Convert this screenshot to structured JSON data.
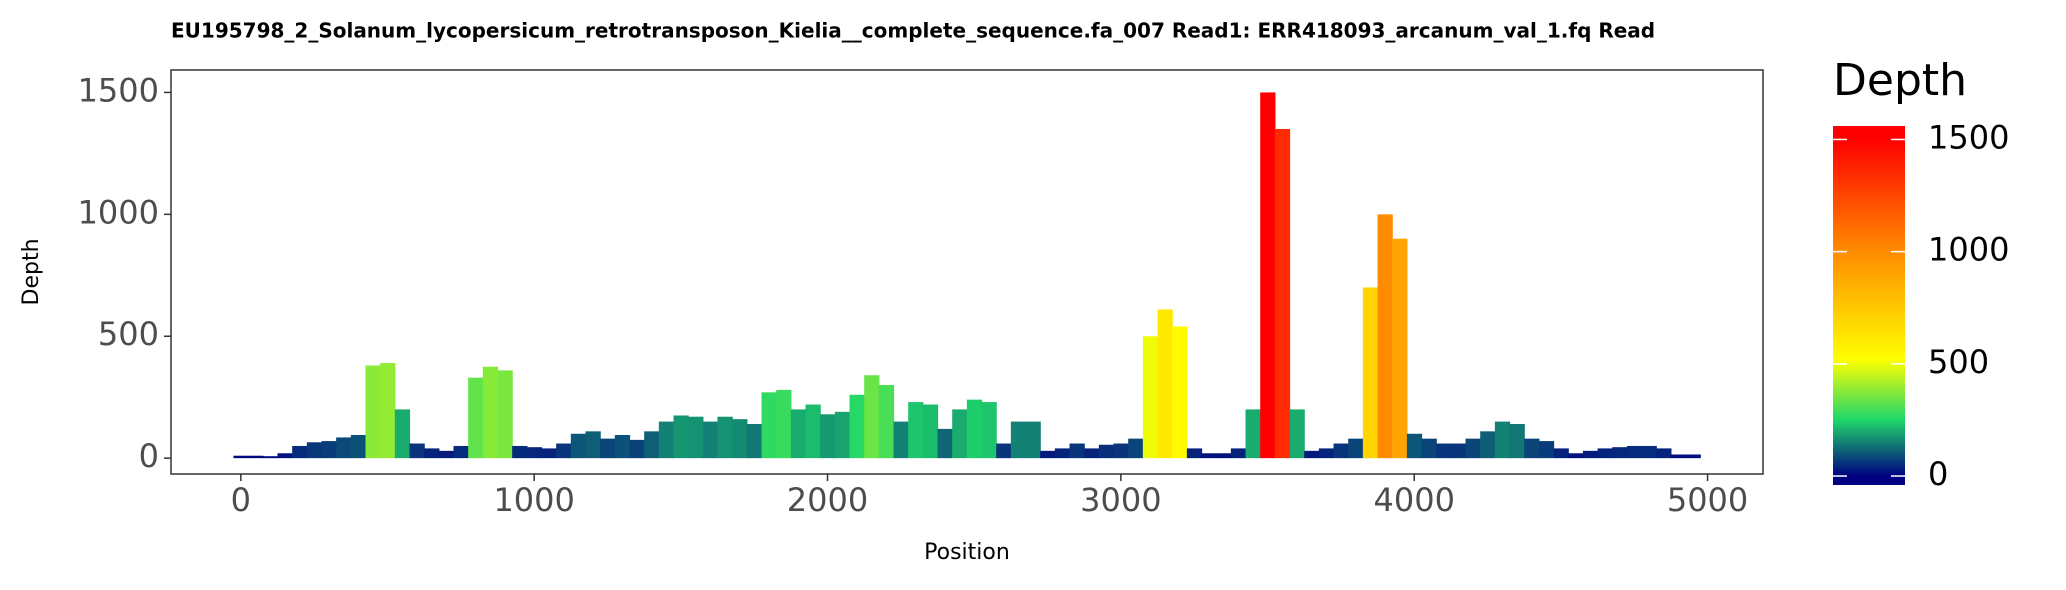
{
  "chart_data": {
    "type": "area",
    "title": "EU195798_2_Solanum_lycopersicum_retrotransposon_Kielia__complete_sequence.fa_007   Read1: ERR418093_arcanum_val_1.fq   Read",
    "x_label": "Position",
    "y_label": "Depth",
    "x": [
      0,
      50,
      100,
      150,
      200,
      250,
      300,
      350,
      400,
      450,
      500,
      550,
      600,
      650,
      700,
      750,
      800,
      850,
      900,
      950,
      1000,
      1050,
      1100,
      1150,
      1200,
      1250,
      1300,
      1350,
      1400,
      1450,
      1500,
      1550,
      1600,
      1650,
      1700,
      1750,
      1800,
      1850,
      1900,
      1950,
      2000,
      2050,
      2100,
      2150,
      2200,
      2250,
      2300,
      2350,
      2400,
      2450,
      2500,
      2550,
      2600,
      2650,
      2700,
      2750,
      2800,
      2850,
      2900,
      2950,
      3000,
      3050,
      3100,
      3150,
      3200,
      3250,
      3300,
      3350,
      3400,
      3450,
      3500,
      3550,
      3600,
      3650,
      3700,
      3750,
      3800,
      3850,
      3900,
      3950,
      4000,
      4050,
      4100,
      4150,
      4200,
      4250,
      4300,
      4350,
      4400,
      4450,
      4500,
      4550,
      4600,
      4650,
      4700,
      4750,
      4800,
      4850,
      4900,
      4950
    ],
    "values": [
      10,
      10,
      8,
      20,
      50,
      65,
      70,
      85,
      95,
      380,
      390,
      200,
      60,
      40,
      30,
      50,
      330,
      375,
      360,
      50,
      45,
      40,
      60,
      100,
      110,
      80,
      95,
      75,
      110,
      150,
      175,
      170,
      150,
      170,
      160,
      140,
      270,
      280,
      200,
      220,
      180,
      190,
      260,
      340,
      300,
      150,
      230,
      220,
      120,
      200,
      240,
      230,
      60,
      150,
      150,
      30,
      40,
      60,
      40,
      55,
      60,
      80,
      500,
      610,
      540,
      40,
      20,
      20,
      40,
      200,
      1500,
      1350,
      200,
      30,
      40,
      60,
      80,
      700,
      1000,
      900,
      100,
      80,
      60,
      60,
      80,
      110,
      150,
      140,
      80,
      70,
      40,
      20,
      30,
      40,
      45,
      50,
      50,
      40,
      15,
      15
    ],
    "xlim": [
      -238,
      5189
    ],
    "ylim": [
      -65,
      1592
    ],
    "xticks": [
      0,
      1000,
      2000,
      3000,
      4000,
      5000
    ],
    "yticks": [
      0,
      500,
      1000,
      1500
    ],
    "legend_title": "Depth",
    "clim": [
      -40,
      1560
    ],
    "cticks": [
      0,
      500,
      1000,
      1500
    ],
    "colorscale": [
      [
        0,
        "#000080"
      ],
      [
        250,
        "#1fd76a"
      ],
      [
        520,
        "#ffff00"
      ],
      [
        1000,
        "#ff8c00"
      ],
      [
        1500,
        "#ff0000"
      ]
    ]
  }
}
